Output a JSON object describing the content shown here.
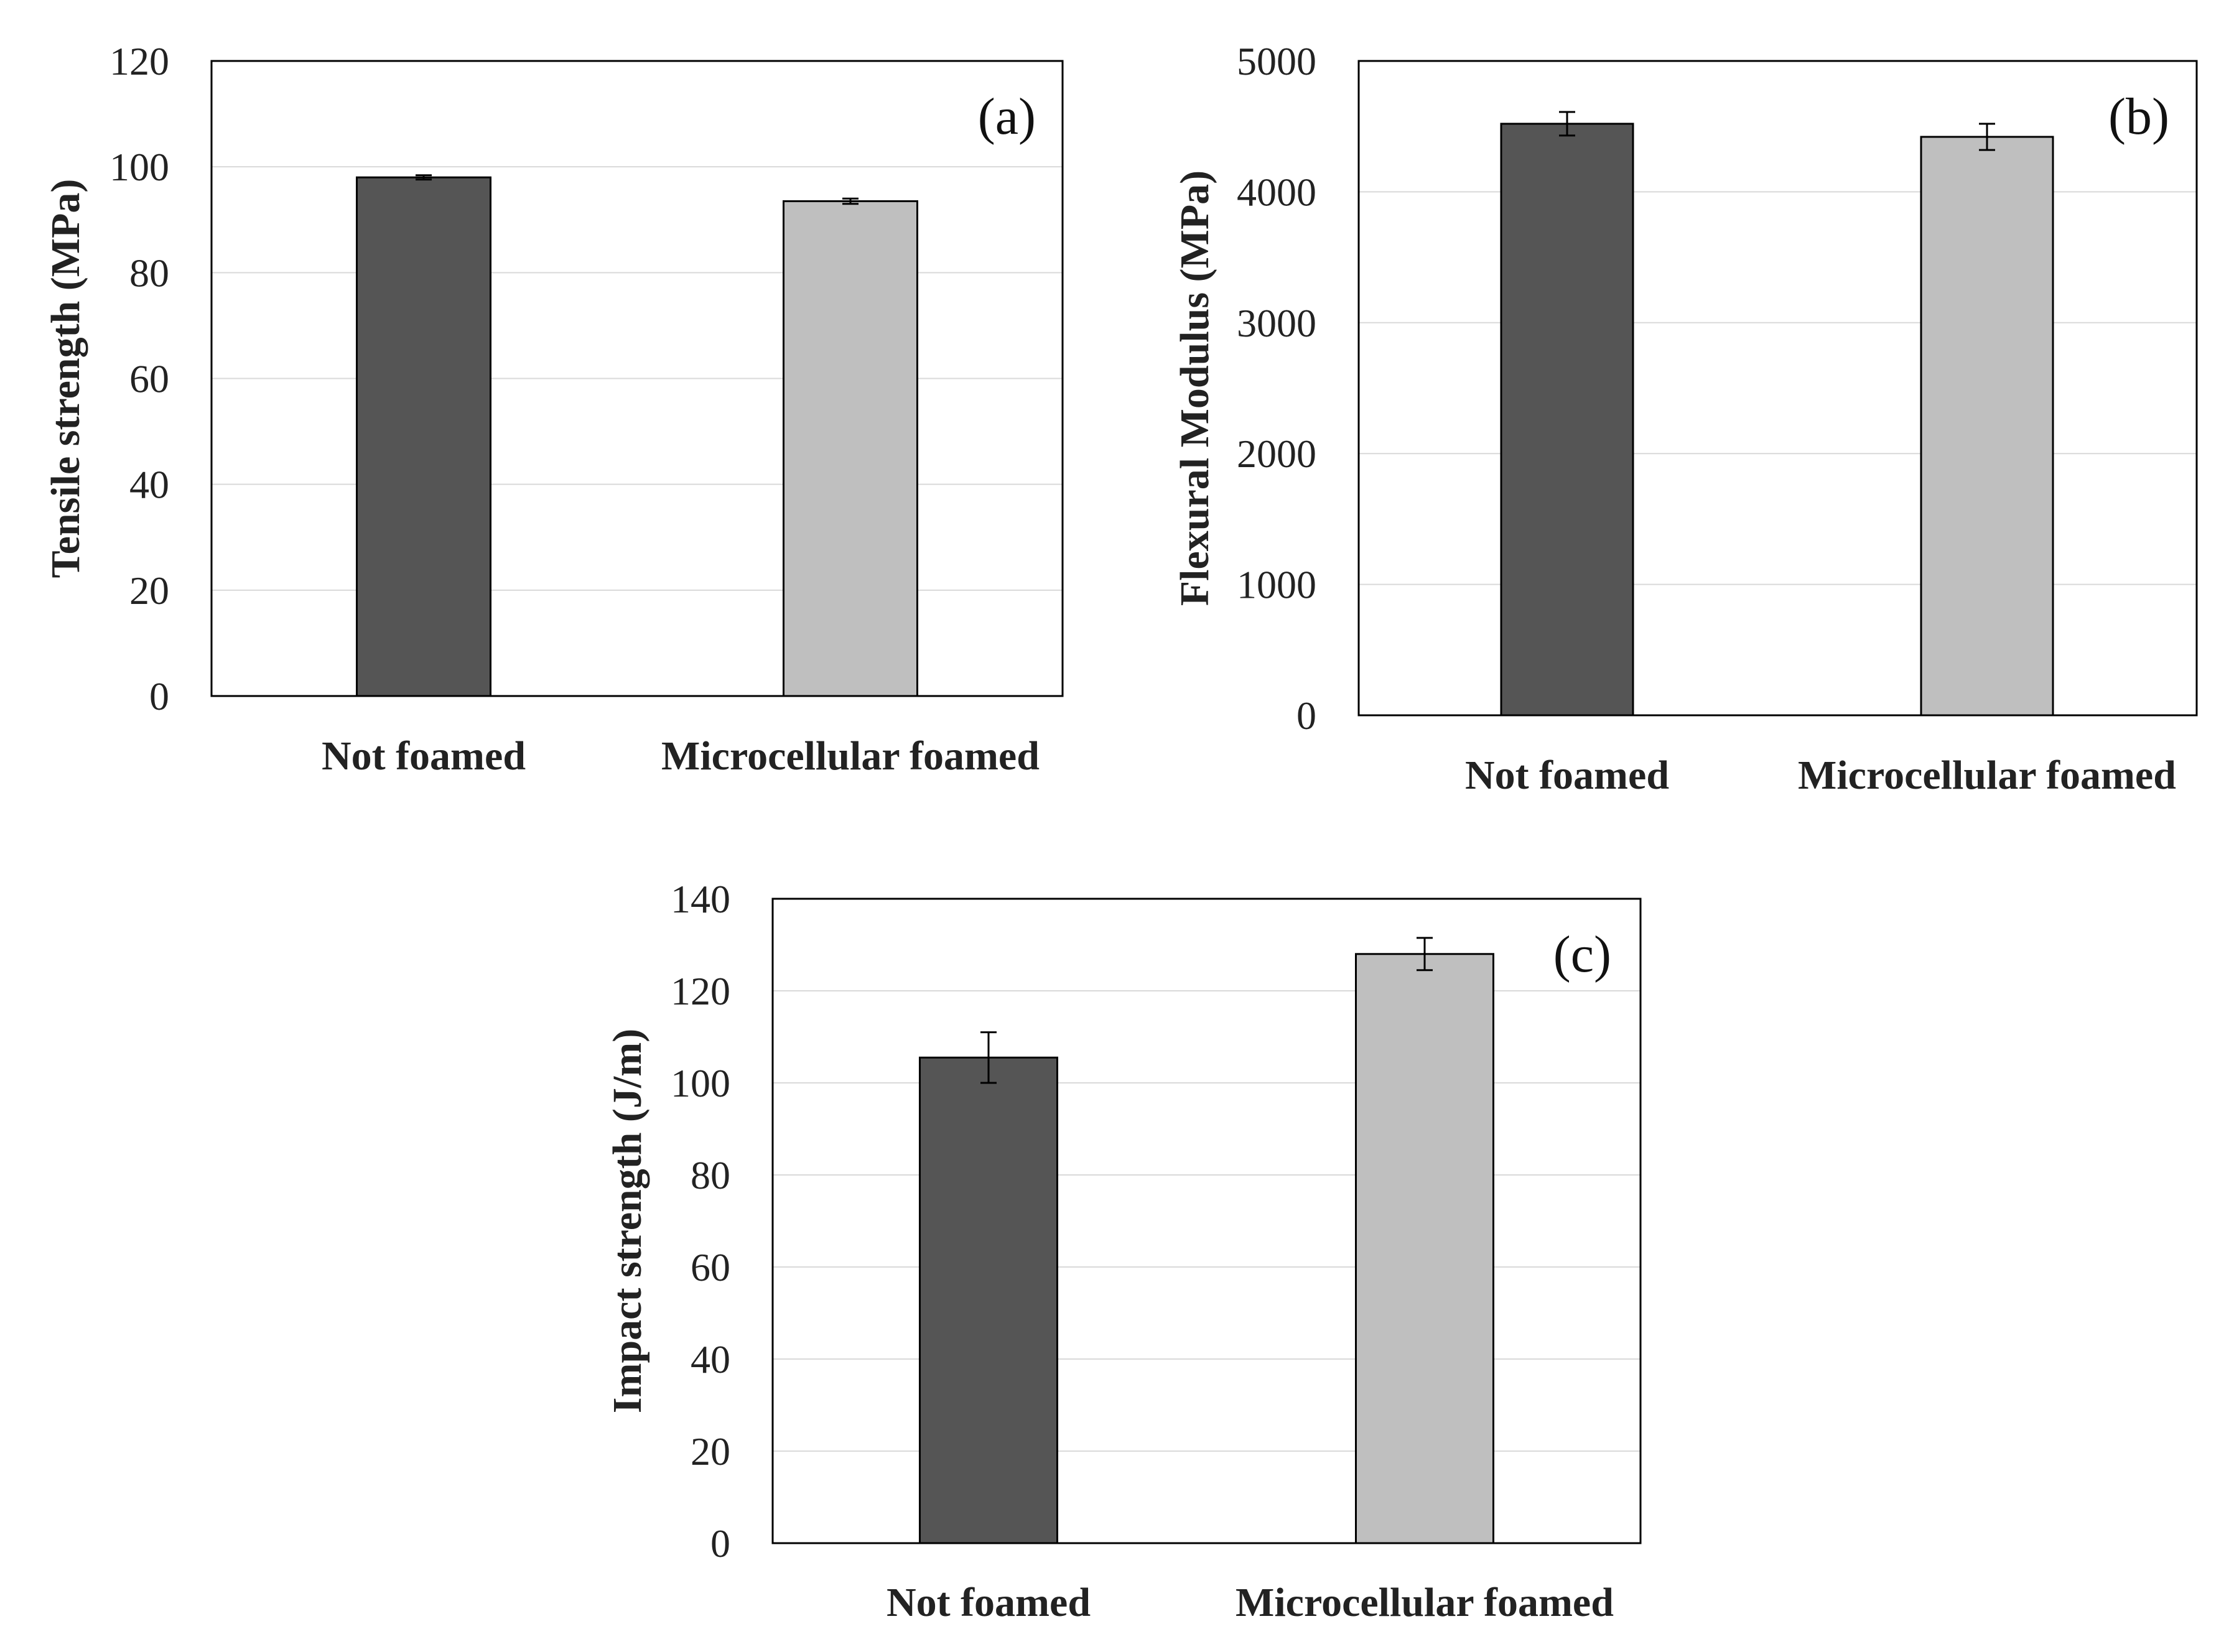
{
  "chart_data": [
    {
      "type": "bar",
      "panel_label": "(a)",
      "categories": [
        "Not foamed",
        "Microcellular foamed"
      ],
      "values": [
        98,
        93.5
      ],
      "errors": [
        0.4,
        0.5
      ],
      "colors": [
        "#555555",
        "#bfbfbf"
      ],
      "ylabel": "Tensile  strength (MPa)",
      "ylim": [
        0,
        120
      ],
      "yticks": [
        0,
        20,
        40,
        60,
        80,
        100,
        120
      ],
      "grid": true
    },
    {
      "type": "bar",
      "panel_label": "(b)",
      "categories": [
        "Not foamed",
        "Microcellular foamed"
      ],
      "values": [
        4520,
        4420
      ],
      "errors": [
        90,
        100
      ],
      "colors": [
        "#555555",
        "#bfbfbf"
      ],
      "ylabel": "Flexural Modulus (MPa)",
      "ylim": [
        0,
        5000
      ],
      "yticks": [
        0,
        1000,
        2000,
        3000,
        4000,
        5000
      ],
      "grid": true
    },
    {
      "type": "bar",
      "panel_label": "(c)",
      "categories": [
        "Not foamed",
        "Microcellular foamed"
      ],
      "values": [
        105.5,
        128
      ],
      "errors": [
        5.5,
        3.5
      ],
      "colors": [
        "#555555",
        "#bfbfbf"
      ],
      "ylabel": "Impact strength (J/m)",
      "ylim": [
        0,
        140
      ],
      "yticks": [
        0,
        20,
        40,
        60,
        80,
        100,
        120,
        140
      ],
      "grid": true
    }
  ]
}
